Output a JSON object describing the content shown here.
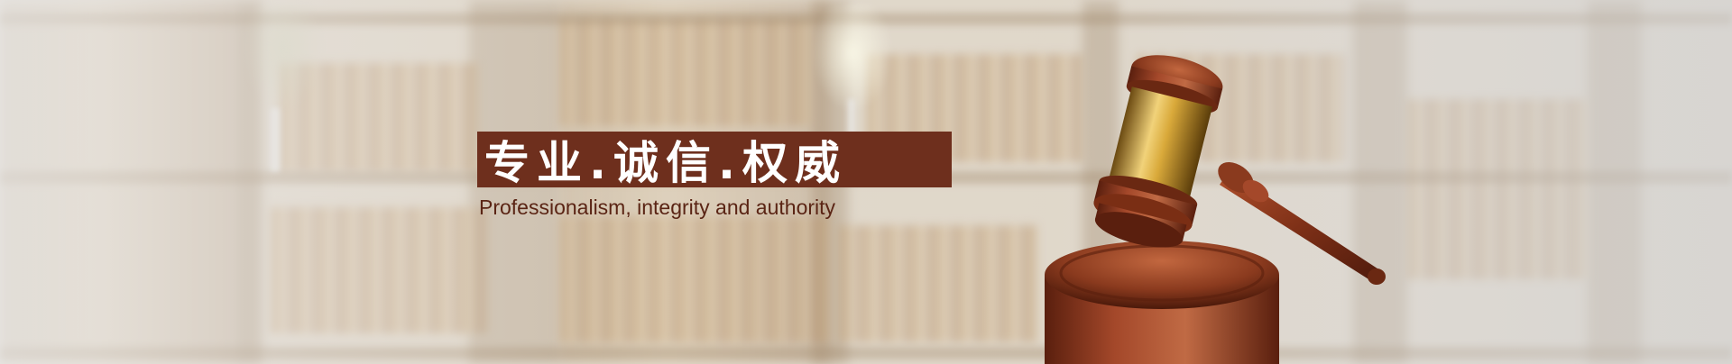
{
  "banner": {
    "headline": "专业.诚信.权威",
    "subline": "Professionalism, integrity and authority"
  },
  "colors": {
    "headline_bg": "#6e2f1d",
    "headline_text": "#ffffff",
    "subline_text": "#5a2414",
    "wood": "#8a3a1e",
    "brass": "#d9b24a"
  },
  "icons": {
    "gavel": "gavel-icon",
    "background": "library-bookshelf-background"
  }
}
